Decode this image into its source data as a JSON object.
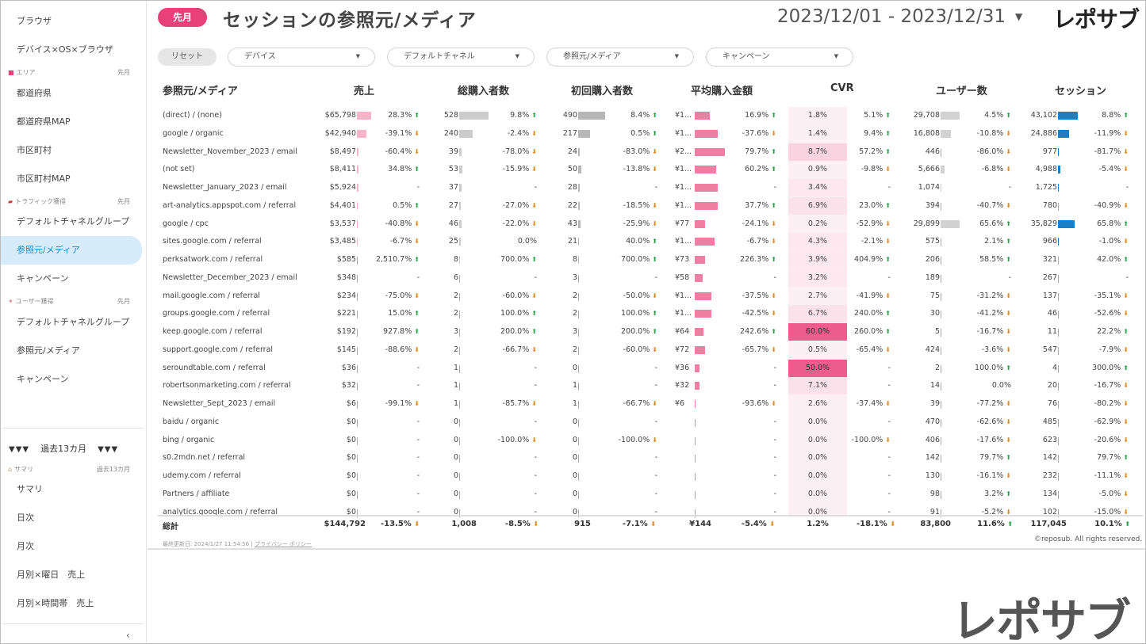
{
  "sidebar": {
    "items_top": [
      "ブラウザ",
      "デバイス×OS×ブラウザ"
    ],
    "section_area": {
      "label": "エリア",
      "period": "先月"
    },
    "items_area": [
      "都道府県",
      "都道府県MAP",
      "市区町村",
      "市区町村MAP"
    ],
    "section_traffic": {
      "label": "トラフィック獲得",
      "period": "先月"
    },
    "items_traffic": [
      "デフォルトチャネルグループ",
      "参照元/メディア",
      "キャンペーン"
    ],
    "section_user": {
      "label": "ユーザー獲得",
      "period": "先月"
    },
    "items_user": [
      "デフォルトチャネルグループ",
      "参照元/メディア",
      "キャンペーン"
    ],
    "range_label": "過去13カ月",
    "range_markers": "▼▼▼",
    "section_summary": {
      "label": "サマリ",
      "period": "過去13カ月"
    },
    "items_summary": [
      "サマリ",
      "日次",
      "月次",
      "月別×曜日　売上",
      "月別×時間帯　売上"
    ]
  },
  "header": {
    "badge": "先月",
    "title": "セッションの参照元/メディア",
    "date_range": "2023/12/01 - 2023/12/31",
    "brand": "レポサブ"
  },
  "filters": {
    "reset": "リセット",
    "items": [
      "デバイス",
      "デフォルトチャネル",
      "参照元/メディア",
      "キャンペーン"
    ]
  },
  "table": {
    "headers": [
      "参照元/メディア",
      "売上",
      "総購入者数",
      "初回購入者数",
      "平均購入金額",
      "CVR",
      "ユーザー数",
      "セッション"
    ],
    "rows": [
      {
        "src": "(direct) / (none)",
        "rev": "$65,798",
        "revb": 65798,
        "revp": "28.3%",
        "revd": "up",
        "buy": "528",
        "buyb": 528,
        "buyp": "9.8%",
        "buyd": "up",
        "fst": "490",
        "fstb": 490,
        "fstp": "8.4%",
        "fstd": "up",
        "avg": "¥1...",
        "avgb": 0.5,
        "avgp": "16.9%",
        "avgd": "up",
        "cvr": "1.8%",
        "cvrv": 1.8,
        "cvrp": "5.1%",
        "cvrd": "up",
        "usr": "29,708",
        "usrb": 29708,
        "usrp": "4.5%",
        "usrd": "up",
        "ses": "43,102",
        "sesb": 43102,
        "sesp": "8.8%",
        "sesd": "up"
      },
      {
        "src": "google / organic",
        "rev": "$42,940",
        "revb": 42940,
        "revp": "-39.1%",
        "revd": "dn",
        "buy": "240",
        "buyb": 240,
        "buyp": "-2.4%",
        "buyd": "dn",
        "fst": "217",
        "fstb": 217,
        "fstp": "0.5%",
        "fstd": "up",
        "avg": "¥1...",
        "avgb": 0.75,
        "avgp": "-37.6%",
        "avgd": "dn",
        "cvr": "1.4%",
        "cvrv": 1.4,
        "cvrp": "9.4%",
        "cvrd": "up",
        "usr": "16,808",
        "usrb": 16808,
        "usrp": "-10.8%",
        "usrd": "dn",
        "ses": "24,886",
        "sesb": 24886,
        "sesp": "-11.9%",
        "sesd": "dn"
      },
      {
        "src": "Newsletter_November_2023 / email",
        "rev": "$8,497",
        "revb": 8497,
        "revp": "-60.4%",
        "revd": "dn",
        "buy": "39",
        "buyb": 39,
        "buyp": "-78.0%",
        "buyd": "dn",
        "fst": "24",
        "fstb": 24,
        "fstp": "-83.0%",
        "fstd": "dn",
        "avg": "¥2...",
        "avgb": 1.0,
        "avgp": "79.7%",
        "avgd": "up",
        "cvr": "8.7%",
        "cvrv": 8.7,
        "cvrp": "57.2%",
        "cvrd": "up",
        "usr": "446",
        "usrb": 446,
        "usrp": "-86.0%",
        "usrd": "dn",
        "ses": "977",
        "sesb": 977,
        "sesp": "-81.7%",
        "sesd": "dn"
      },
      {
        "src": "(not set)",
        "rev": "$8,411",
        "revb": 8411,
        "revp": "34.8%",
        "revd": "up",
        "buy": "53",
        "buyb": 53,
        "buyp": "-15.9%",
        "buyd": "dn",
        "fst": "50",
        "fstb": 50,
        "fstp": "-13.8%",
        "fstd": "dn",
        "avg": "¥1...",
        "avgb": 0.7,
        "avgp": "60.2%",
        "avgd": "up",
        "cvr": "0.9%",
        "cvrv": 0.9,
        "cvrp": "-9.8%",
        "cvrd": "dn",
        "usr": "5,666",
        "usrb": 5666,
        "usrp": "-6.8%",
        "usrd": "dn",
        "ses": "4,988",
        "sesb": 4988,
        "sesp": "-5.4%",
        "sesd": "dn"
      },
      {
        "src": "Newsletter_January_2023 / email",
        "rev": "$5,924",
        "revb": 5924,
        "revp": "-",
        "revd": "",
        "buy": "37",
        "buyb": 37,
        "buyp": "-",
        "buyd": "",
        "fst": "28",
        "fstb": 28,
        "fstp": "-",
        "fstd": "",
        "avg": "¥1...",
        "avgb": 0.75,
        "avgp": "-",
        "avgd": "",
        "cvr": "3.4%",
        "cvrv": 3.4,
        "cvrp": "-",
        "cvrd": "",
        "usr": "1,074",
        "usrb": 1074,
        "usrp": "-",
        "usrd": "",
        "ses": "1,725",
        "sesb": 1725,
        "sesp": "-",
        "sesd": ""
      },
      {
        "src": "art-analytics.appspot.com / referral",
        "rev": "$4,401",
        "revb": 4401,
        "revp": "0.5%",
        "revd": "up",
        "buy": "27",
        "buyb": 27,
        "buyp": "-27.0%",
        "buyd": "dn",
        "fst": "22",
        "fstb": 22,
        "fstp": "-18.5%",
        "fstd": "dn",
        "avg": "¥1...",
        "avgb": 0.75,
        "avgp": "37.7%",
        "avgd": "up",
        "cvr": "6.9%",
        "cvrv": 6.9,
        "cvrp": "23.0%",
        "cvrd": "up",
        "usr": "394",
        "usrb": 394,
        "usrp": "-40.7%",
        "usrd": "dn",
        "ses": "780",
        "sesb": 780,
        "sesp": "-40.9%",
        "sesd": "dn"
      },
      {
        "src": "google / cpc",
        "rev": "$3,537",
        "revb": 3537,
        "revp": "-40.8%",
        "revd": "dn",
        "buy": "46",
        "buyb": 46,
        "buyp": "-22.0%",
        "buyd": "dn",
        "fst": "43",
        "fstb": 43,
        "fstp": "-25.9%",
        "fstd": "dn",
        "avg": "¥77",
        "avgb": 0.35,
        "avgp": "-24.1%",
        "avgd": "dn",
        "cvr": "0.2%",
        "cvrv": 0.2,
        "cvrp": "-52.9%",
        "cvrd": "dn",
        "usr": "29,899",
        "usrb": 29899,
        "usrp": "65.6%",
        "usrd": "up",
        "ses": "35,829",
        "sesb": 35829,
        "sesp": "65.8%",
        "sesd": "up"
      },
      {
        "src": "sites.google.com / referral",
        "rev": "$3,485",
        "revb": 3485,
        "revp": "-6.7%",
        "revd": "dn",
        "buy": "25",
        "buyb": 25,
        "buyp": "0.0%",
        "buyd": "",
        "fst": "21",
        "fstb": 21,
        "fstp": "40.0%",
        "fstd": "up",
        "avg": "¥1...",
        "avgb": 0.65,
        "avgp": "-6.7%",
        "avgd": "dn",
        "cvr": "4.3%",
        "cvrv": 4.3,
        "cvrp": "-2.1%",
        "cvrd": "dn",
        "usr": "575",
        "usrb": 575,
        "usrp": "2.1%",
        "usrd": "up",
        "ses": "966",
        "sesb": 966,
        "sesp": "-1.0%",
        "sesd": "dn"
      },
      {
        "src": "perksatwork.com / referral",
        "rev": "$585",
        "revb": 585,
        "revp": "2,510.7%",
        "revd": "up",
        "buy": "8",
        "buyb": 8,
        "buyp": "700.0%",
        "buyd": "up",
        "fst": "8",
        "fstb": 8,
        "fstp": "700.0%",
        "fstd": "up",
        "avg": "¥73",
        "avgb": 0.33,
        "avgp": "226.3%",
        "avgd": "up",
        "cvr": "3.9%",
        "cvrv": 3.9,
        "cvrp": "404.9%",
        "cvrd": "up",
        "usr": "206",
        "usrb": 206,
        "usrp": "58.5%",
        "usrd": "up",
        "ses": "321",
        "sesb": 321,
        "sesp": "42.0%",
        "sesd": "up"
      },
      {
        "src": "Newsletter_December_2023 / email",
        "rev": "$348",
        "revb": 348,
        "revp": "-",
        "revd": "",
        "buy": "6",
        "buyb": 6,
        "buyp": "-",
        "buyd": "",
        "fst": "3",
        "fstb": 3,
        "fstp": "-",
        "fstd": "",
        "avg": "¥58",
        "avgb": 0.27,
        "avgp": "-",
        "avgd": "",
        "cvr": "3.2%",
        "cvrv": 3.2,
        "cvrp": "-",
        "cvrd": "",
        "usr": "189",
        "usrb": 189,
        "usrp": "-",
        "usrd": "",
        "ses": "267",
        "sesb": 267,
        "sesp": "-",
        "sesd": ""
      },
      {
        "src": "mail.google.com / referral",
        "rev": "$234",
        "revb": 234,
        "revp": "-75.0%",
        "revd": "dn",
        "buy": "2",
        "buyb": 2,
        "buyp": "-60.0%",
        "buyd": "dn",
        "fst": "2",
        "fstb": 2,
        "fstp": "-50.0%",
        "fstd": "dn",
        "avg": "¥1...",
        "avgb": 0.55,
        "avgp": "-37.5%",
        "avgd": "dn",
        "cvr": "2.7%",
        "cvrv": 2.7,
        "cvrp": "-41.9%",
        "cvrd": "dn",
        "usr": "75",
        "usrb": 75,
        "usrp": "-31.2%",
        "usrd": "dn",
        "ses": "137",
        "sesb": 137,
        "sesp": "-35.1%",
        "sesd": "dn"
      },
      {
        "src": "groups.google.com / referral",
        "rev": "$221",
        "revb": 221,
        "revp": "15.0%",
        "revd": "up",
        "buy": "2",
        "buyb": 2,
        "buyp": "100.0%",
        "buyd": "up",
        "fst": "2",
        "fstb": 2,
        "fstp": "100.0%",
        "fstd": "up",
        "avg": "¥1...",
        "avgb": 0.55,
        "avgp": "-42.5%",
        "avgd": "dn",
        "cvr": "6.7%",
        "cvrv": 6.7,
        "cvrp": "240.0%",
        "cvrd": "up",
        "usr": "30",
        "usrb": 30,
        "usrp": "-41.2%",
        "usrd": "dn",
        "ses": "46",
        "sesb": 46,
        "sesp": "-52.6%",
        "sesd": "dn"
      },
      {
        "src": "keep.google.com / referral",
        "rev": "$192",
        "revb": 192,
        "revp": "927.8%",
        "revd": "up",
        "buy": "3",
        "buyb": 3,
        "buyp": "200.0%",
        "buyd": "up",
        "fst": "3",
        "fstb": 3,
        "fstp": "200.0%",
        "fstd": "up",
        "avg": "¥64",
        "avgb": 0.3,
        "avgp": "242.6%",
        "avgd": "up",
        "cvr": "60.0%",
        "cvrv": 60.0,
        "cvrp": "260.0%",
        "cvrd": "up",
        "usr": "5",
        "usrb": 5,
        "usrp": "-16.7%",
        "usrd": "dn",
        "ses": "11",
        "sesb": 11,
        "sesp": "22.2%",
        "sesd": "up"
      },
      {
        "src": "support.google.com / referral",
        "rev": "$145",
        "revb": 145,
        "revp": "-88.6%",
        "revd": "dn",
        "buy": "2",
        "buyb": 2,
        "buyp": "-66.7%",
        "buyd": "dn",
        "fst": "2",
        "fstb": 2,
        "fstp": "-60.0%",
        "fstd": "dn",
        "avg": "¥72",
        "avgb": 0.33,
        "avgp": "-65.7%",
        "avgd": "dn",
        "cvr": "0.5%",
        "cvrv": 0.5,
        "cvrp": "-65.4%",
        "cvrd": "dn",
        "usr": "424",
        "usrb": 424,
        "usrp": "-3.6%",
        "usrd": "dn",
        "ses": "547",
        "sesb": 547,
        "sesp": "-7.9%",
        "sesd": "dn"
      },
      {
        "src": "seroundtable.com / referral",
        "rev": "$36",
        "revb": 36,
        "revp": "-",
        "revd": "",
        "buy": "1",
        "buyb": 1,
        "buyp": "-",
        "buyd": "",
        "fst": "0",
        "fstb": 0,
        "fstp": "-",
        "fstd": "",
        "avg": "¥36",
        "avgb": 0.17,
        "avgp": "-",
        "avgd": "",
        "cvr": "50.0%",
        "cvrv": 50.0,
        "cvrp": "-",
        "cvrd": "",
        "usr": "2",
        "usrb": 2,
        "usrp": "100.0%",
        "usrd": "up",
        "ses": "4",
        "sesb": 4,
        "sesp": "300.0%",
        "sesd": "up"
      },
      {
        "src": "robertsonmarketing.com / referral",
        "rev": "$32",
        "revb": 32,
        "revp": "-",
        "revd": "",
        "buy": "1",
        "buyb": 1,
        "buyp": "-",
        "buyd": "",
        "fst": "1",
        "fstb": 1,
        "fstp": "-",
        "fstd": "",
        "avg": "¥32",
        "avgb": 0.15,
        "avgp": "-",
        "avgd": "",
        "cvr": "7.1%",
        "cvrv": 7.1,
        "cvrp": "-",
        "cvrd": "",
        "usr": "14",
        "usrb": 14,
        "usrp": "0.0%",
        "usrd": "",
        "ses": "20",
        "sesb": 20,
        "sesp": "-16.7%",
        "sesd": "dn"
      },
      {
        "src": "Newsletter_Sept_2023 / email",
        "rev": "$6",
        "revb": 6,
        "revp": "-99.1%",
        "revd": "dn",
        "buy": "1",
        "buyb": 1,
        "buyp": "-85.7%",
        "buyd": "dn",
        "fst": "1",
        "fstb": 1,
        "fstp": "-66.7%",
        "fstd": "dn",
        "avg": "¥6",
        "avgb": 0.03,
        "avgp": "-93.6%",
        "avgd": "dn",
        "cvr": "2.6%",
        "cvrv": 2.6,
        "cvrp": "-37.4%",
        "cvrd": "dn",
        "usr": "39",
        "usrb": 39,
        "usrp": "-77.2%",
        "usrd": "dn",
        "ses": "76",
        "sesb": 76,
        "sesp": "-80.2%",
        "sesd": "dn"
      },
      {
        "src": "baidu / organic",
        "rev": "$0",
        "revb": 0,
        "revp": "-",
        "revd": "",
        "buy": "0",
        "buyb": 0,
        "buyp": "-",
        "buyd": "",
        "fst": "0",
        "fstb": 0,
        "fstp": "-",
        "fstd": "",
        "avg": "",
        "avgb": 0,
        "avgp": "-",
        "avgd": "",
        "cvr": "0.0%",
        "cvrv": 0,
        "cvrp": "-",
        "cvrd": "",
        "usr": "470",
        "usrb": 470,
        "usrp": "-62.6%",
        "usrd": "dn",
        "ses": "485",
        "sesb": 485,
        "sesp": "-62.9%",
        "sesd": "dn"
      },
      {
        "src": "bing / organic",
        "rev": "$0",
        "revb": 0,
        "revp": "-",
        "revd": "",
        "buy": "0",
        "buyb": 0,
        "buyp": "-100.0%",
        "buyd": "dn",
        "fst": "0",
        "fstb": 0,
        "fstp": "-100.0%",
        "fstd": "dn",
        "avg": "",
        "avgb": 0,
        "avgp": "-",
        "avgd": "",
        "cvr": "0.0%",
        "cvrv": 0,
        "cvrp": "-100.0%",
        "cvrd": "dn",
        "usr": "406",
        "usrb": 406,
        "usrp": "-17.6%",
        "usrd": "dn",
        "ses": "623",
        "sesb": 623,
        "sesp": "-20.6%",
        "sesd": "dn"
      },
      {
        "src": "s0.2mdn.net / referral",
        "rev": "$0",
        "revb": 0,
        "revp": "-",
        "revd": "",
        "buy": "0",
        "buyb": 0,
        "buyp": "-",
        "buyd": "",
        "fst": "0",
        "fstb": 0,
        "fstp": "-",
        "fstd": "",
        "avg": "",
        "avgb": 0,
        "avgp": "-",
        "avgd": "",
        "cvr": "0.0%",
        "cvrv": 0,
        "cvrp": "-",
        "cvrd": "",
        "usr": "142",
        "usrb": 142,
        "usrp": "79.7%",
        "usrd": "up",
        "ses": "142",
        "sesb": 142,
        "sesp": "79.7%",
        "sesd": "up"
      },
      {
        "src": "udemy.com / referral",
        "rev": "$0",
        "revb": 0,
        "revp": "-",
        "revd": "",
        "buy": "0",
        "buyb": 0,
        "buyp": "-",
        "buyd": "",
        "fst": "0",
        "fstb": 0,
        "fstp": "-",
        "fstd": "",
        "avg": "",
        "avgb": 0,
        "avgp": "-",
        "avgd": "",
        "cvr": "0.0%",
        "cvrv": 0,
        "cvrp": "-",
        "cvrd": "",
        "usr": "130",
        "usrb": 130,
        "usrp": "-16.1%",
        "usrd": "dn",
        "ses": "232",
        "sesb": 232,
        "sesp": "-11.1%",
        "sesd": "dn"
      },
      {
        "src": "Partners / affiliate",
        "rev": "$0",
        "revb": 0,
        "revp": "-",
        "revd": "",
        "buy": "0",
        "buyb": 0,
        "buyp": "-",
        "buyd": "",
        "fst": "0",
        "fstb": 0,
        "fstp": "-",
        "fstd": "",
        "avg": "",
        "avgb": 0,
        "avgp": "-",
        "avgd": "",
        "cvr": "0.0%",
        "cvrv": 0,
        "cvrp": "-",
        "cvrd": "",
        "usr": "98",
        "usrb": 98,
        "usrp": "3.2%",
        "usrd": "up",
        "ses": "134",
        "sesb": 134,
        "sesp": "-5.0%",
        "sesd": "dn"
      },
      {
        "src": "analytics.google.com / referral",
        "rev": "$0",
        "revb": 0,
        "revp": "-",
        "revd": "",
        "buy": "0",
        "buyb": 0,
        "buyp": "-",
        "buyd": "",
        "fst": "0",
        "fstb": 0,
        "fstp": "-",
        "fstd": "",
        "avg": "",
        "avgb": 0,
        "avgp": "-",
        "avgd": "",
        "cvr": "0.0%",
        "cvrv": 0,
        "cvrp": "-",
        "cvrd": "",
        "usr": "91",
        "usrb": 91,
        "usrp": "-5.2%",
        "usrd": "dn",
        "ses": "102",
        "sesb": 102,
        "sesp": "-15.0%",
        "sesd": "dn"
      }
    ],
    "total": {
      "label": "総計",
      "rev": "$144,792",
      "revp": "-13.5%",
      "revd": "dn",
      "buy": "1,008",
      "buyp": "-8.5%",
      "buyd": "dn",
      "fst": "915",
      "fstp": "-7.1%",
      "fstd": "dn",
      "avg": "¥144",
      "avgp": "-5.4%",
      "avgd": "dn",
      "cvr": "1.2%",
      "cvrp": "-18.1%",
      "cvrd": "dn",
      "usr": "83,800",
      "usrp": "11.6%",
      "usrd": "up",
      "ses": "117,045",
      "sesp": "10.1%",
      "sesd": "up"
    }
  },
  "footer": {
    "updated": "最終更新日: 2024/1/27 11:54:56",
    "separator": "|",
    "privacy": "プライバシー ポリシー",
    "copyright": "©reposub. All rights reserved."
  },
  "watermark_brand": "レポサブ",
  "colors": {
    "accent": "#e8417a",
    "active_bg": "#d6ecfa",
    "session_bar": "#1a7fc4",
    "rev_bar": "#f7b3c8",
    "avg_bar": "#ef7fa2",
    "gray_bar": "#cccccc"
  }
}
